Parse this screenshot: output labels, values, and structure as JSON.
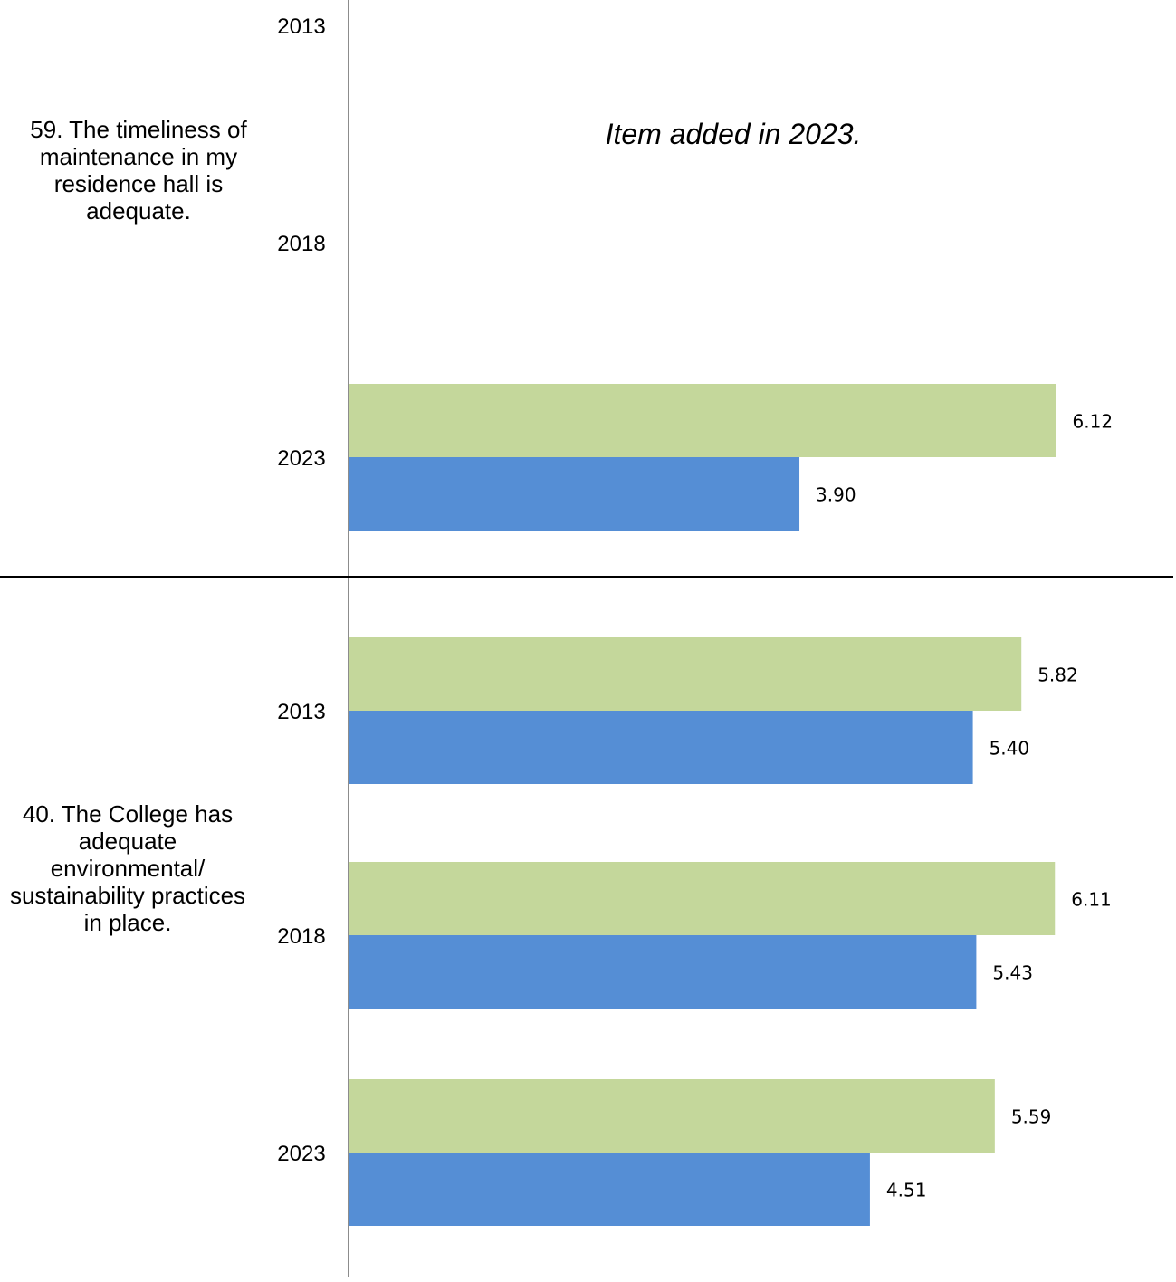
{
  "chart_data": [
    {
      "type": "bar",
      "orientation": "horizontal",
      "question": "59.  The timeliness of maintenance in my residence hall is adequate.",
      "categories": [
        "2013",
        "2018",
        "2023"
      ],
      "series": [
        {
          "color": "#c4d79b",
          "values": [
            null,
            null,
            6.12
          ],
          "labels": [
            "",
            "",
            "6.12"
          ]
        },
        {
          "color": "#558ed5",
          "values": [
            null,
            null,
            3.9
          ],
          "labels": [
            "",
            "",
            "3.90"
          ]
        }
      ],
      "note": "Item added in 2023.",
      "xlim": [
        0,
        7
      ],
      "grid": false
    },
    {
      "type": "bar",
      "orientation": "horizontal",
      "question": "40.  The College has adequate environmental/ sustainability practices in place.",
      "categories": [
        "2013",
        "2018",
        "2023"
      ],
      "series": [
        {
          "color": "#c4d79b",
          "values": [
            5.82,
            6.11,
            5.59
          ],
          "labels": [
            "5.82",
            "6.11",
            "5.59"
          ]
        },
        {
          "color": "#558ed5",
          "values": [
            5.4,
            5.43,
            4.51
          ],
          "labels": [
            "5.40",
            "5.43",
            "4.51"
          ]
        }
      ],
      "xlim": [
        0,
        7
      ],
      "grid": false
    }
  ]
}
